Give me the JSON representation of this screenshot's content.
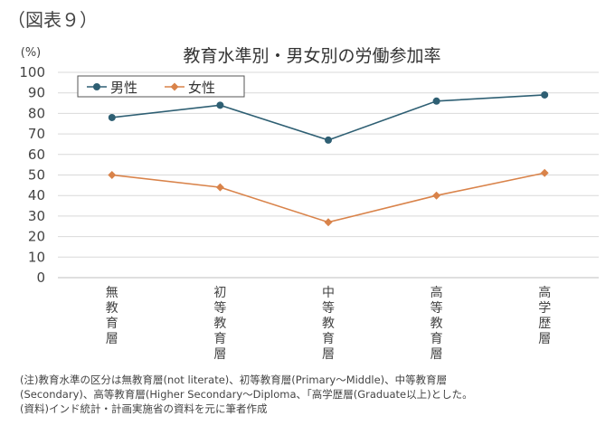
{
  "figure_label": "（図表９）",
  "chart_data": {
    "type": "line",
    "title": "教育水準別・男女別の労働参加率",
    "yunit": "(%)",
    "ylim": [
      0,
      100
    ],
    "yticks": [
      0,
      10,
      20,
      30,
      40,
      50,
      60,
      70,
      80,
      90,
      100
    ],
    "grid": true,
    "legend_placement": "top-left",
    "categories": [
      "無教育層",
      "初等教育層",
      "中等教育層",
      "高等教育層",
      "高学歴層"
    ],
    "series": [
      {
        "name": "男性",
        "color": "#2e5f73",
        "values": [
          78,
          84,
          67,
          86,
          89
        ]
      },
      {
        "name": "女性",
        "color": "#d9834a",
        "values": [
          50,
          44,
          27,
          40,
          51
        ]
      }
    ]
  },
  "notes": [
    "(注)教育水準の区分は無教育層(not literate)、初等教育層(Primary～Middle)、中等教育層",
    "(Secondary)、高等教育層(Higher Secondary～Diploma、「高学歴層(Graduate以上)とした。",
    "(資料)インド統計・計画実施省の資料を元に筆者作成"
  ]
}
